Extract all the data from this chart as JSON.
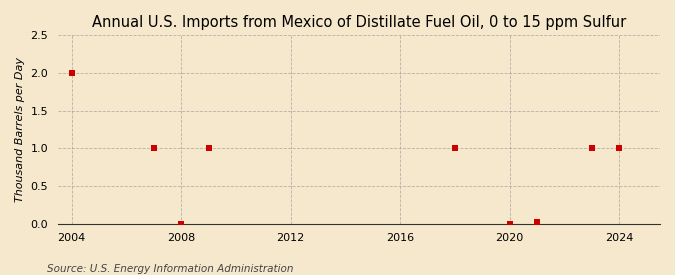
{
  "title": "Annual U.S. Imports from Mexico of Distillate Fuel Oil, 0 to 15 ppm Sulfur",
  "ylabel": "Thousand Barrels per Day",
  "source": "Source: U.S. Energy Information Administration",
  "background_color": "#f5e8cc",
  "plot_background_color": "#f5e8cc",
  "xlim": [
    2003.5,
    2025.5
  ],
  "ylim": [
    0.0,
    2.5
  ],
  "yticks": [
    0.0,
    0.5,
    1.0,
    1.5,
    2.0,
    2.5
  ],
  "xticks": [
    2004,
    2008,
    2012,
    2016,
    2020,
    2024
  ],
  "data_x": [
    2004,
    2007,
    2008,
    2009,
    2018,
    2020,
    2021,
    2023,
    2024
  ],
  "data_y": [
    2.0,
    1.0,
    0.0,
    1.0,
    1.0,
    0.0,
    0.02,
    1.0,
    1.0
  ],
  "marker_color": "#cc0000",
  "marker": "s",
  "marker_size": 4,
  "grid_color": "#999999",
  "grid_style": "--",
  "title_fontsize": 10.5,
  "ylabel_fontsize": 8,
  "tick_fontsize": 8,
  "source_fontsize": 7.5
}
